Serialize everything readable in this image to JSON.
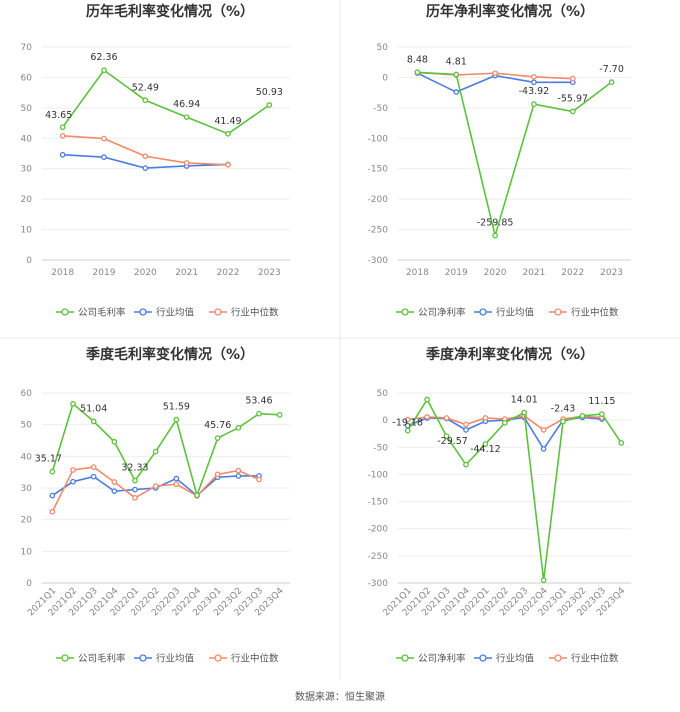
{
  "source": "数据来源：恒生聚源",
  "legend_labels": {
    "gross": [
      "公司毛利率",
      "行业均值",
      "行业中位数"
    ],
    "net": [
      "公司净利率",
      "行业均值",
      "行业中位数"
    ]
  },
  "colors": {
    "company": "#5cc23c",
    "avg": "#4a7de0",
    "median": "#f2896b"
  },
  "chart_data": [
    {
      "type": "line",
      "title": "历年毛利率变化情况（%）",
      "categories": [
        "2018",
        "2019",
        "2020",
        "2021",
        "2022",
        "2023"
      ],
      "ylim": [
        0,
        70
      ],
      "yticks": [
        0,
        10,
        20,
        30,
        40,
        50,
        60,
        70
      ],
      "series": [
        {
          "name": "公司毛利率",
          "key": "company",
          "values": [
            43.65,
            62.36,
            52.49,
            46.94,
            41.49,
            50.93
          ]
        },
        {
          "name": "行业均值",
          "key": "avg",
          "values": [
            34.6,
            33.8,
            30.2,
            30.9,
            31.4,
            null
          ]
        },
        {
          "name": "行业中位数",
          "key": "median",
          "values": [
            40.8,
            39.9,
            34.1,
            31.9,
            31.3,
            null
          ]
        }
      ],
      "data_labels": [
        "43.65",
        "62.36",
        "52.49",
        "46.94",
        "41.49",
        "50.93"
      ]
    },
    {
      "type": "line",
      "title": "历年净利率变化情况（%）",
      "categories": [
        "2018",
        "2019",
        "2020",
        "2021",
        "2022",
        "2023"
      ],
      "ylim": [
        -300,
        50
      ],
      "yticks": [
        -300,
        -250,
        -200,
        -150,
        -100,
        -50,
        0,
        50
      ],
      "series": [
        {
          "name": "公司净利率",
          "key": "company",
          "values": [
            8.48,
            4.81,
            -259.85,
            -43.92,
            -55.97,
            -7.7
          ]
        },
        {
          "name": "行业均值",
          "key": "avg",
          "values": [
            7.0,
            -24.0,
            3.0,
            -8.0,
            -8.0,
            null
          ]
        },
        {
          "name": "行业中位数",
          "key": "median",
          "values": [
            8.0,
            4.0,
            7.0,
            1.0,
            -2.0,
            null
          ]
        }
      ],
      "data_labels": [
        "8.48",
        "4.81",
        "-259.85",
        "-43.92",
        "-55.97",
        "-7.70"
      ]
    },
    {
      "type": "line",
      "title": "季度毛利率变化情况（%）",
      "categories": [
        "2021Q1",
        "2021Q2",
        "2021Q3",
        "2021Q4",
        "2022Q1",
        "2022Q2",
        "2022Q3",
        "2022Q4",
        "2023Q1",
        "2023Q2",
        "2023Q3",
        "2023Q4"
      ],
      "ylim": [
        0,
        60
      ],
      "yticks": [
        0,
        10,
        20,
        30,
        40,
        50,
        60
      ],
      "series": [
        {
          "name": "公司毛利率",
          "key": "company",
          "values": [
            35.17,
            56.6,
            51.04,
            44.6,
            32.33,
            41.5,
            51.59,
            27.7,
            45.76,
            49.0,
            53.46,
            53.1
          ]
        },
        {
          "name": "行业均值",
          "key": "avg",
          "values": [
            27.6,
            32.0,
            33.6,
            29.0,
            29.5,
            30.0,
            33.0,
            27.6,
            33.4,
            33.8,
            33.8,
            null
          ]
        },
        {
          "name": "行业中位数",
          "key": "median",
          "values": [
            22.5,
            35.7,
            36.6,
            31.9,
            26.9,
            30.6,
            31.2,
            27.5,
            34.3,
            35.5,
            32.7,
            null
          ]
        }
      ],
      "data_labels": [
        "35.17",
        "",
        "51.04",
        "",
        "32.33",
        "",
        "51.59",
        "",
        "45.76",
        "",
        "53.46",
        ""
      ]
    },
    {
      "type": "line",
      "title": "季度净利率变化情况（%）",
      "categories": [
        "2021Q1",
        "2021Q2",
        "2021Q3",
        "2021Q4",
        "2022Q1",
        "2022Q2",
        "2022Q3",
        "2022Q4",
        "2023Q1",
        "2023Q2",
        "2023Q3",
        "2023Q4"
      ],
      "ylim": [
        -300,
        50
      ],
      "yticks": [
        -300,
        -250,
        -200,
        -150,
        -100,
        -50,
        0,
        50
      ],
      "series": [
        {
          "name": "公司净利率",
          "key": "company",
          "values": [
            -19.18,
            38.0,
            -29.57,
            -82.0,
            -44.12,
            -5.0,
            14.01,
            -295.0,
            -2.43,
            8.0,
            11.15,
            -42.0
          ]
        },
        {
          "name": "行业均值",
          "key": "avg",
          "values": [
            -10.0,
            4.0,
            3.0,
            -18.0,
            -2.0,
            0.0,
            5.0,
            -53.0,
            0.0,
            5.0,
            2.0,
            null
          ]
        },
        {
          "name": "行业中位数",
          "key": "median",
          "values": [
            1.0,
            6.0,
            4.0,
            -8.0,
            4.0,
            2.0,
            8.0,
            -18.0,
            2.0,
            7.0,
            5.0,
            null
          ]
        }
      ],
      "data_labels": [
        "-19.18",
        "",
        "-29.57",
        "",
        "-44.12",
        "",
        "14.01",
        "",
        "-2.43",
        "",
        "11.15",
        ""
      ]
    }
  ]
}
